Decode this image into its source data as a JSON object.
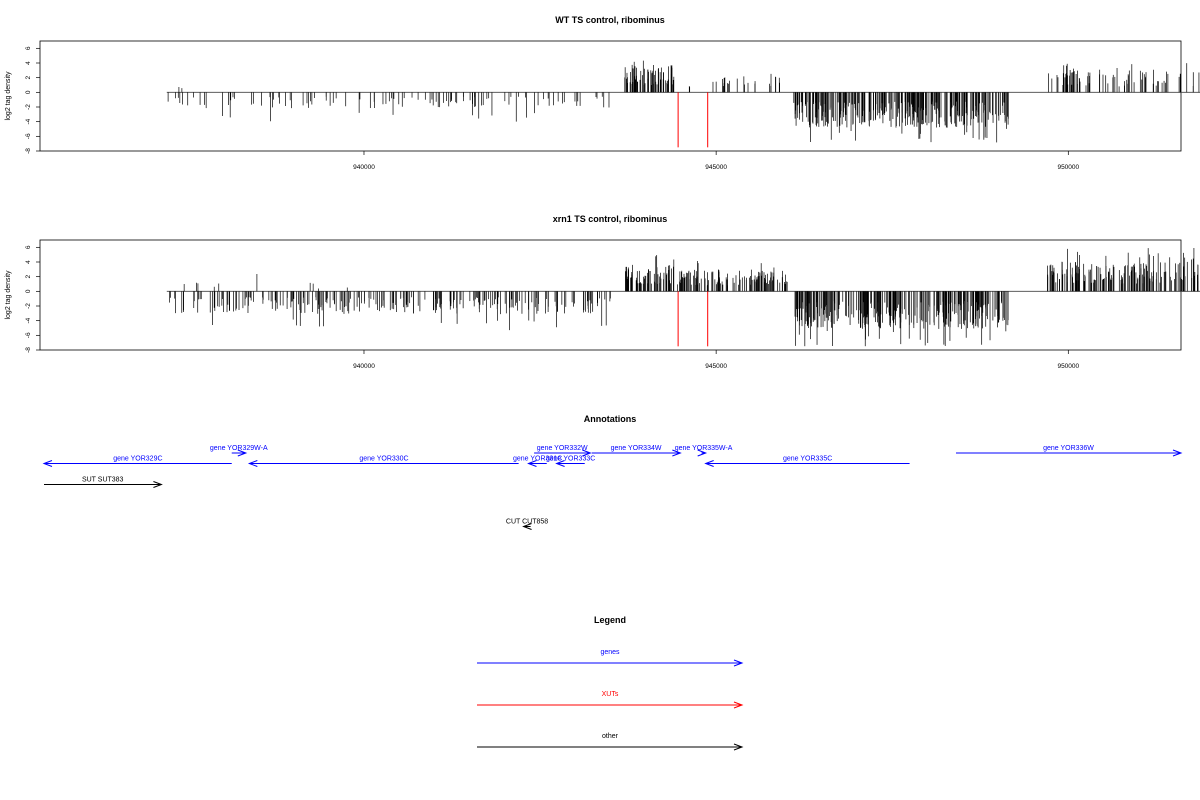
{
  "colors": {
    "gene": "#0000ff",
    "xut": "#ff0000",
    "other": "#000000",
    "signal": "#000000",
    "marker": "#ff0000"
  },
  "chart_data": [
    {
      "type": "bar",
      "title": "WT TS control, ribominus",
      "ylabel": "log2 tag density",
      "xlim": [
        935400,
        951600
      ],
      "ylim": [
        -8,
        7
      ],
      "yticks": [
        6,
        4,
        2,
        0,
        -2,
        -4,
        -6,
        -8
      ],
      "xticks": [
        940000,
        945000,
        950000
      ],
      "xtick_labels": [
        "940000",
        "945000",
        "950000"
      ],
      "red_markers": [
        944460,
        944880
      ],
      "segments": [
        {
          "start": 937200,
          "end": 943500,
          "sign": -1,
          "avg": 1.6,
          "max": 4.0,
          "density": 110,
          "seed": 11
        },
        {
          "start": 937300,
          "end": 937600,
          "sign": 1,
          "avg": 0.6,
          "max": 1.0,
          "density": 2,
          "seed": 12
        },
        {
          "start": 943700,
          "end": 944400,
          "sign": 1,
          "avg": 2.8,
          "max": 5.0,
          "density": 70,
          "seed": 13
        },
        {
          "start": 944600,
          "end": 944700,
          "sign": 1,
          "avg": 0.8,
          "max": 1.0,
          "density": 2,
          "seed": 14
        },
        {
          "start": 944950,
          "end": 945950,
          "sign": 1,
          "avg": 1.6,
          "max": 2.8,
          "density": 24,
          "seed": 15
        },
        {
          "start": 946100,
          "end": 949150,
          "sign": -1,
          "avg": 3.6,
          "max": 7.0,
          "density": 300,
          "seed": 16
        },
        {
          "start": 949700,
          "end": 952200,
          "sign": 1,
          "avg": 2.3,
          "max": 4.0,
          "density": 95,
          "seed": 17
        }
      ]
    },
    {
      "type": "bar",
      "title": "xrn1 TS control, ribominus",
      "ylabel": "log2 tag density",
      "xlim": [
        935400,
        951600
      ],
      "ylim": [
        -8,
        7
      ],
      "yticks": [
        6,
        4,
        2,
        0,
        -2,
        -4,
        -6,
        -8
      ],
      "xticks": [
        940000,
        945000,
        950000
      ],
      "xtick_labels": [
        "940000",
        "945000",
        "950000"
      ],
      "red_markers": [
        944460,
        944880
      ],
      "segments": [
        {
          "start": 937200,
          "end": 943500,
          "sign": -1,
          "avg": 2.3,
          "max": 5.5,
          "density": 250,
          "seed": 21
        },
        {
          "start": 937250,
          "end": 939800,
          "sign": 1,
          "avg": 1.0,
          "max": 2.5,
          "density": 10,
          "seed": 22
        },
        {
          "start": 943700,
          "end": 944400,
          "sign": 1,
          "avg": 2.6,
          "max": 5.0,
          "density": 70,
          "seed": 23
        },
        {
          "start": 944450,
          "end": 946050,
          "sign": 1,
          "avg": 2.2,
          "max": 4.2,
          "density": 120,
          "seed": 24
        },
        {
          "start": 946100,
          "end": 949150,
          "sign": -1,
          "avg": 3.8,
          "max": 7.5,
          "density": 300,
          "seed": 25
        },
        {
          "start": 949700,
          "end": 952200,
          "sign": 1,
          "avg": 3.0,
          "max": 6.0,
          "density": 200,
          "seed": 26
        }
      ]
    }
  ],
  "annotations": {
    "title": "Annotations",
    "features": [
      {
        "label": "gene YOR329C",
        "type": "gene",
        "dir": "left",
        "start": 935430,
        "end": 938100,
        "row": 1
      },
      {
        "label": "gene YOR329W-A",
        "type": "gene",
        "dir": "right",
        "start": 938100,
        "end": 938300,
        "row": 0
      },
      {
        "label": "gene YOR330C",
        "type": "gene",
        "dir": "left",
        "start": 938350,
        "end": 942180,
        "row": 1
      },
      {
        "label": "gene YOR331C",
        "type": "gene",
        "dir": "left",
        "start": 942320,
        "end": 942580,
        "row": 1
      },
      {
        "label": "gene YOR332W",
        "type": "gene",
        "dir": "right",
        "start": 942400,
        "end": 943200,
        "row": 0
      },
      {
        "label": "gene YOR333C",
        "type": "gene",
        "dir": "left",
        "start": 942720,
        "end": 943120,
        "row": 1
      },
      {
        "label": "gene YOR334W",
        "type": "gene",
        "dir": "right",
        "start": 943220,
        "end": 944480,
        "row": 0
      },
      {
        "label": "gene YOR335W-A",
        "type": "gene",
        "dir": "right",
        "start": 944780,
        "end": 944840,
        "row": 0
      },
      {
        "label": "gene YOR335C",
        "type": "gene",
        "dir": "left",
        "start": 944840,
        "end": 947740,
        "row": 1
      },
      {
        "label": "gene YOR336W",
        "type": "gene",
        "dir": "right",
        "start": 948400,
        "end": 951600,
        "row": 0
      },
      {
        "label": "SUT SUT383",
        "type": "other",
        "dir": "right",
        "start": 935430,
        "end": 937100,
        "row": 3
      },
      {
        "label": "CUT CUT858",
        "type": "other",
        "dir": "left",
        "start": 942250,
        "end": 942350,
        "row": 7
      }
    ]
  },
  "legend": {
    "title": "Legend",
    "items": [
      {
        "label": "genes",
        "type": "gene"
      },
      {
        "label": "XUTs",
        "type": "xut"
      },
      {
        "label": "other",
        "type": "other"
      }
    ]
  }
}
